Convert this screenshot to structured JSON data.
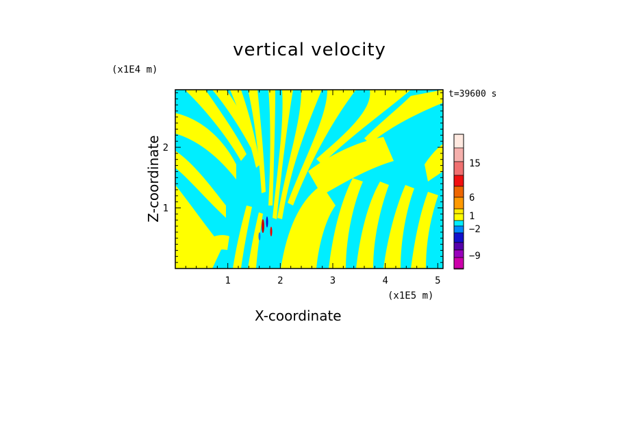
{
  "chart_data": {
    "type": "heatmap",
    "title": "vertical velocity",
    "xlabel": "X-coordinate",
    "ylabel": "Z-coordinate",
    "x_scale_label": "(x1E5 m)",
    "y_scale_label": "(x1E4 m)",
    "time_label": "t=39600 s",
    "xlim": [
      0,
      5.1
    ],
    "ylim": [
      0,
      2.95
    ],
    "x_ticks": [
      "1",
      "2",
      "3",
      "4",
      "5"
    ],
    "y_ticks": [
      "1",
      "2"
    ],
    "colorbar": {
      "labels": [
        "15",
        "6",
        "1",
        "-2",
        "-9"
      ],
      "colors": [
        "#ffe9e0",
        "#f5b0ac",
        "#f07070",
        "#f01010",
        "#ee6600",
        "#ff9900",
        "#ffee00",
        "#ffff00",
        "#00eeff",
        "#0088ff",
        "#1111cc",
        "#5500aa",
        "#9900bb",
        "#cc00aa",
        "#ee00aa"
      ]
    },
    "dominant_colors": {
      "positive": "#ffff00",
      "negative": "#00eeff"
    }
  }
}
